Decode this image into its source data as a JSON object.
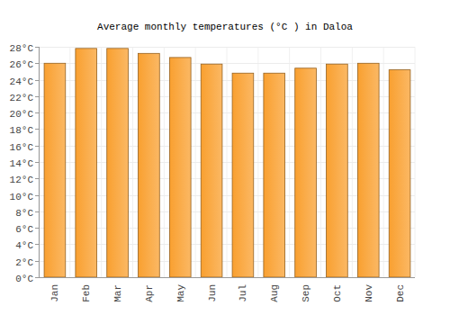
{
  "chart_data": {
    "type": "bar",
    "title": "Average monthly temperatures (°C ) in Daloa",
    "categories": [
      "Jan",
      "Feb",
      "Mar",
      "Apr",
      "May",
      "Jun",
      "Jul",
      "Aug",
      "Sep",
      "Oct",
      "Nov",
      "Dec"
    ],
    "values": [
      26.0,
      27.8,
      27.8,
      27.2,
      26.7,
      25.9,
      24.8,
      24.8,
      25.4,
      25.9,
      26.0,
      25.2
    ],
    "color": "#f9a030",
    "ylim": [
      0,
      28
    ],
    "yticks": [
      {
        "value": 0,
        "label": "0°C"
      },
      {
        "value": 2,
        "label": "2°C"
      },
      {
        "value": 4,
        "label": "4°C"
      },
      {
        "value": 6,
        "label": "6°C"
      },
      {
        "value": 8,
        "label": "8°C"
      },
      {
        "value": 10,
        "label": "10°C"
      },
      {
        "value": 12,
        "label": "12°C"
      },
      {
        "value": 14,
        "label": "14°C"
      },
      {
        "value": 16,
        "label": "16°C"
      },
      {
        "value": 18,
        "label": "18°C"
      },
      {
        "value": 20,
        "label": "20°C"
      },
      {
        "value": 22,
        "label": "22°C"
      },
      {
        "value": 24,
        "label": "24°C"
      },
      {
        "value": 26,
        "label": "26°C"
      },
      {
        "value": 28,
        "label": "28°C"
      }
    ],
    "grid": true
  }
}
